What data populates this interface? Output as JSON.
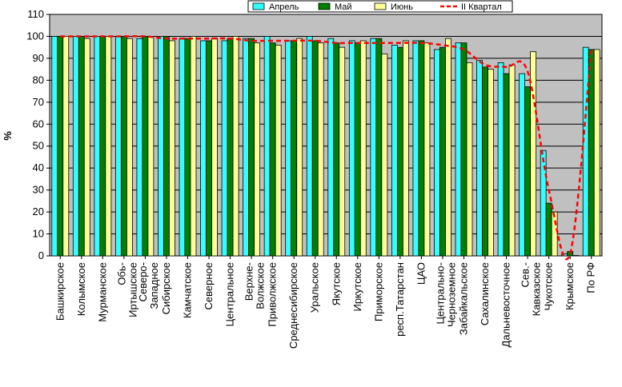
{
  "chart_data": {
    "type": "bar",
    "ylabel": "%",
    "ylim": [
      0,
      110
    ],
    "yticks": [
      0,
      10,
      20,
      30,
      40,
      50,
      60,
      70,
      80,
      90,
      100,
      110
    ],
    "grid": true,
    "legend_position": "top-right",
    "categories": [
      "Башкирское",
      "Колымское",
      "Мурманское",
      "Обь-Иртышское",
      "Северо-Западное",
      "Сибирское",
      "Камчатское",
      "Северное",
      "Центральное",
      "Верхне-Волжское",
      "Приволжское",
      "Среднесибирское",
      "Уральское",
      "Якутское",
      "Иркутское",
      "Приморское",
      "респ.Татарстан",
      "ЦАО",
      "Центрально-Черноземное",
      "Забайкальское",
      "Сахалинское",
      "Дальневосточное",
      "Сев.-Кавказское",
      "Чукотское",
      "Крымское",
      "По РФ"
    ],
    "series": [
      {
        "name": "Апрель",
        "kind": "bar",
        "color": "#33ffff",
        "values": [
          100,
          100,
          100,
          100,
          99,
          100,
          99,
          98,
          98,
          99,
          100,
          98,
          100,
          99,
          98,
          99,
          96,
          98,
          94,
          97,
          89,
          88,
          83,
          48,
          1,
          95
        ]
      },
      {
        "name": "Май",
        "kind": "bar",
        "color": "#008000",
        "values": [
          100,
          100,
          100,
          100,
          100,
          100,
          99,
          98,
          99,
          99,
          97,
          98,
          98,
          97,
          97,
          99,
          95,
          98,
          95,
          97,
          86,
          83,
          77,
          24,
          2,
          94
        ]
      },
      {
        "name": "Июнь",
        "kind": "bar",
        "color": "#ffff99",
        "values": [
          100,
          99,
          100,
          99,
          100,
          98,
          100,
          99,
          100,
          97,
          96,
          99,
          97,
          95,
          98,
          92,
          98,
          97,
          99,
          88,
          85,
          87,
          93,
          20,
          0,
          94
        ]
      },
      {
        "name": "II Квартал",
        "kind": "line",
        "color": "#ff0000",
        "values": [
          100,
          100,
          100,
          100,
          100,
          99,
          99,
          99,
          99,
          98,
          98,
          98,
          98,
          97,
          97,
          97,
          97,
          97,
          96,
          94,
          87,
          86,
          84,
          30,
          1,
          94
        ]
      }
    ]
  }
}
